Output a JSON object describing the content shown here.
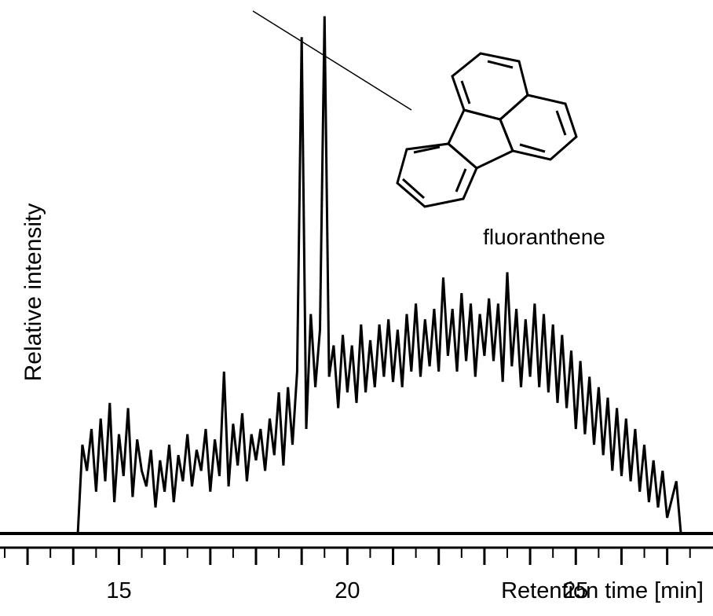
{
  "chart_data": {
    "type": "line",
    "title": "",
    "xlabel": "Retention time [min]",
    "ylabel": "Relative intensity",
    "xlim": [
      12.5,
      27.9
    ],
    "ylim": [
      0,
      100
    ],
    "xticks": [
      15,
      20,
      25
    ],
    "grid": false,
    "legend": "none",
    "series": [
      {
        "color": "#000000",
        "points": [
          [
            14.1,
            0
          ],
          [
            14.2,
            17
          ],
          [
            14.3,
            12
          ],
          [
            14.4,
            20
          ],
          [
            14.5,
            8
          ],
          [
            14.6,
            22
          ],
          [
            14.7,
            10
          ],
          [
            14.8,
            25
          ],
          [
            14.9,
            6
          ],
          [
            15.0,
            19
          ],
          [
            15.1,
            11
          ],
          [
            15.2,
            24
          ],
          [
            15.3,
            7
          ],
          [
            15.4,
            18
          ],
          [
            15.5,
            12
          ],
          [
            15.6,
            9
          ],
          [
            15.7,
            16
          ],
          [
            15.8,
            5
          ],
          [
            15.9,
            14
          ],
          [
            16.0,
            8
          ],
          [
            16.1,
            17
          ],
          [
            16.2,
            6
          ],
          [
            16.3,
            15
          ],
          [
            16.4,
            10
          ],
          [
            16.5,
            19
          ],
          [
            16.6,
            9
          ],
          [
            16.7,
            16
          ],
          [
            16.8,
            12
          ],
          [
            16.9,
            20
          ],
          [
            17.0,
            8
          ],
          [
            17.1,
            18
          ],
          [
            17.2,
            11
          ],
          [
            17.3,
            31
          ],
          [
            17.4,
            9
          ],
          [
            17.5,
            21
          ],
          [
            17.6,
            13
          ],
          [
            17.7,
            23
          ],
          [
            17.8,
            10
          ],
          [
            17.9,
            19
          ],
          [
            18.0,
            14
          ],
          [
            18.1,
            20
          ],
          [
            18.2,
            12
          ],
          [
            18.3,
            22
          ],
          [
            18.4,
            15
          ],
          [
            18.5,
            27
          ],
          [
            18.6,
            13
          ],
          [
            18.7,
            28
          ],
          [
            18.8,
            17
          ],
          [
            18.9,
            31
          ],
          [
            19.0,
            95
          ],
          [
            19.1,
            20
          ],
          [
            19.2,
            42
          ],
          [
            19.3,
            28
          ],
          [
            19.4,
            39
          ],
          [
            19.5,
            99
          ],
          [
            19.6,
            30
          ],
          [
            19.7,
            36
          ],
          [
            19.8,
            24
          ],
          [
            19.9,
            38
          ],
          [
            20.0,
            27
          ],
          [
            20.1,
            36
          ],
          [
            20.2,
            25
          ],
          [
            20.3,
            40
          ],
          [
            20.4,
            27
          ],
          [
            20.5,
            37
          ],
          [
            20.6,
            28
          ],
          [
            20.7,
            40
          ],
          [
            20.8,
            30
          ],
          [
            20.9,
            41
          ],
          [
            21.0,
            29
          ],
          [
            21.1,
            39
          ],
          [
            21.2,
            28
          ],
          [
            21.3,
            42
          ],
          [
            21.4,
            31
          ],
          [
            21.5,
            44
          ],
          [
            21.6,
            30
          ],
          [
            21.7,
            41
          ],
          [
            21.8,
            32
          ],
          [
            21.9,
            43
          ],
          [
            22.0,
            31
          ],
          [
            22.1,
            49
          ],
          [
            22.2,
            34
          ],
          [
            22.3,
            43
          ],
          [
            22.4,
            31
          ],
          [
            22.5,
            46
          ],
          [
            22.6,
            33
          ],
          [
            22.7,
            44
          ],
          [
            22.8,
            30
          ],
          [
            22.9,
            42
          ],
          [
            23.0,
            34
          ],
          [
            23.1,
            45
          ],
          [
            23.2,
            33
          ],
          [
            23.3,
            44
          ],
          [
            23.4,
            29
          ],
          [
            23.5,
            50
          ],
          [
            23.6,
            32
          ],
          [
            23.7,
            43
          ],
          [
            23.8,
            28
          ],
          [
            23.9,
            41
          ],
          [
            24.0,
            30
          ],
          [
            24.1,
            44
          ],
          [
            24.2,
            28
          ],
          [
            24.3,
            42
          ],
          [
            24.4,
            27
          ],
          [
            24.5,
            40
          ],
          [
            24.6,
            25
          ],
          [
            24.7,
            38
          ],
          [
            24.8,
            24
          ],
          [
            24.9,
            35
          ],
          [
            25.0,
            20
          ],
          [
            25.1,
            33
          ],
          [
            25.2,
            19
          ],
          [
            25.3,
            30
          ],
          [
            25.4,
            17
          ],
          [
            25.5,
            28
          ],
          [
            25.6,
            15
          ],
          [
            25.7,
            26
          ],
          [
            25.8,
            12
          ],
          [
            25.9,
            24
          ],
          [
            26.0,
            11
          ],
          [
            26.1,
            22
          ],
          [
            26.2,
            10
          ],
          [
            26.3,
            20
          ],
          [
            26.4,
            8
          ],
          [
            26.5,
            17
          ],
          [
            26.6,
            6
          ],
          [
            26.7,
            14
          ],
          [
            26.8,
            5
          ],
          [
            26.9,
            12
          ],
          [
            27.0,
            3
          ],
          [
            27.2,
            10
          ],
          [
            27.3,
            0
          ]
        ]
      }
    ],
    "annotations": [
      {
        "text": "fluoranthene",
        "x": 19.5
      }
    ]
  }
}
